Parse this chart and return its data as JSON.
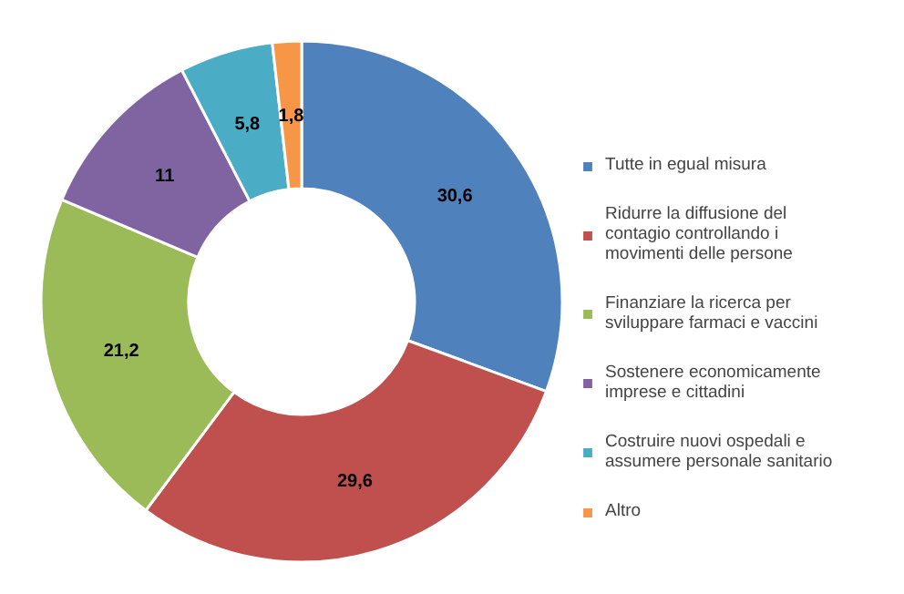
{
  "chart_data": {
    "type": "donut",
    "categories": [
      "Tutte in egual misura",
      "Ridurre la diffusione del contagio controllando i movimenti delle persone",
      "Finanziare la ricerca per sviluppare farmaci e vaccini",
      "Sostenere economicamente imprese e cittadini",
      "Costruire nuovi ospedali e assumere personale sanitario",
      "Altro"
    ],
    "values": [
      30.6,
      29.6,
      21.2,
      11,
      5.8,
      1.8
    ],
    "value_labels": [
      "30,6",
      "29,6",
      "21,2",
      "11",
      "5,8",
      "1,8"
    ],
    "colors": [
      "#4f81bd",
      "#c0504d",
      "#9bbb59",
      "#8064a2",
      "#4bacc6",
      "#f79646"
    ],
    "legend": "right"
  }
}
